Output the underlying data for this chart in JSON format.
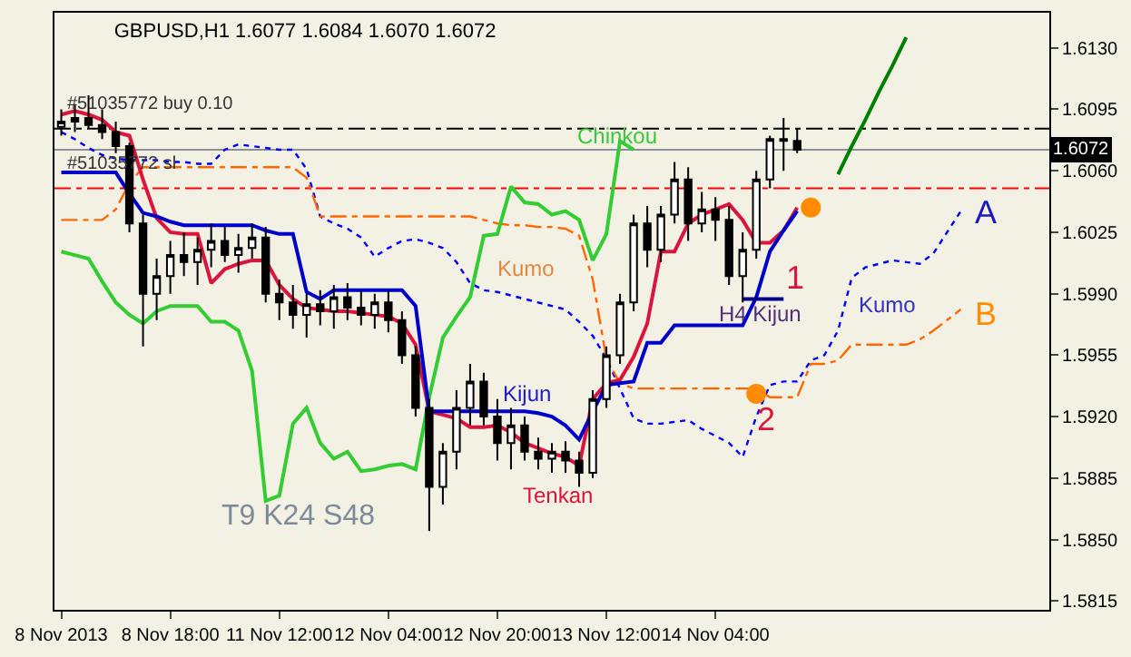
{
  "chart_data": {
    "type": "candlestick",
    "title": "GBPUSD,H1 1.6077 1.6084 1.6070 1.6072",
    "categories": [
      "8 Nov 2013",
      null,
      null,
      null,
      null,
      null,
      null,
      null,
      "8 Nov 18:00",
      null,
      null,
      null,
      null,
      null,
      null,
      null,
      "11 Nov 12:00",
      null,
      null,
      null,
      null,
      null,
      null,
      null,
      "12 Nov 04:00",
      null,
      null,
      null,
      null,
      null,
      null,
      null,
      "12 Nov 20:00",
      null,
      null,
      null,
      null,
      null,
      null,
      null,
      "13 Nov 12:00",
      null,
      null,
      null,
      null,
      null,
      null,
      null,
      "14 Nov 04:00",
      null,
      null,
      null,
      null,
      null,
      null,
      null,
      null,
      null,
      null,
      null,
      null,
      null,
      null,
      null,
      null,
      null,
      null,
      null,
      null,
      null,
      null,
      null,
      null
    ],
    "ohlc": [
      [
        1.6085,
        1.6095,
        1.608,
        1.6088
      ],
      [
        1.6088,
        1.6098,
        1.6082,
        1.609
      ],
      [
        1.609,
        1.6103,
        1.6084,
        1.6086
      ],
      [
        1.6086,
        1.6095,
        1.6078,
        1.6082
      ],
      [
        1.6082,
        1.6088,
        1.607,
        1.6074
      ],
      [
        1.6074,
        1.6076,
        1.6025,
        1.603
      ],
      [
        1.603,
        1.6035,
        1.596,
        1.599
      ],
      [
        1.599,
        1.601,
        1.5975,
        1.6
      ],
      [
        1.6,
        1.602,
        1.599,
        1.6012
      ],
      [
        1.6012,
        1.6025,
        1.6,
        1.6008
      ],
      [
        1.6008,
        1.6022,
        1.5995,
        1.6015
      ],
      [
        1.6015,
        1.603,
        1.6005,
        1.602
      ],
      [
        1.602,
        1.6028,
        1.6008,
        1.6012
      ],
      [
        1.6012,
        1.6024,
        1.6002,
        1.6016
      ],
      [
        1.6016,
        1.603,
        1.601,
        1.6022
      ],
      [
        1.6022,
        1.6028,
        1.5985,
        1.599
      ],
      [
        1.599,
        1.5998,
        1.5975,
        1.5985
      ],
      [
        1.5985,
        1.5995,
        1.597,
        1.5978
      ],
      [
        1.5978,
        1.599,
        1.5965,
        1.5984
      ],
      [
        1.5984,
        1.5992,
        1.5972,
        1.598
      ],
      [
        1.598,
        1.5995,
        1.597,
        1.5988
      ],
      [
        1.5988,
        1.5996,
        1.5975,
        1.5982
      ],
      [
        1.5982,
        1.5992,
        1.5972,
        1.5978
      ],
      [
        1.5978,
        1.599,
        1.597,
        1.5985
      ],
      [
        1.5985,
        1.5992,
        1.5968,
        1.5975
      ],
      [
        1.5975,
        1.598,
        1.595,
        1.5955
      ],
      [
        1.5955,
        1.596,
        1.592,
        1.5925
      ],
      [
        1.5925,
        1.593,
        1.5855,
        1.588
      ],
      [
        1.588,
        1.5905,
        1.587,
        1.59
      ],
      [
        1.59,
        1.5935,
        1.589,
        1.5925
      ],
      [
        1.5925,
        1.595,
        1.5915,
        1.594
      ],
      [
        1.594,
        1.5945,
        1.5915,
        1.592
      ],
      [
        1.592,
        1.593,
        1.5895,
        1.5905
      ],
      [
        1.5905,
        1.5925,
        1.589,
        1.5915
      ],
      [
        1.5915,
        1.592,
        1.5895,
        1.59
      ],
      [
        1.59,
        1.5908,
        1.589,
        1.5896
      ],
      [
        1.5896,
        1.5905,
        1.5888,
        1.59
      ],
      [
        1.59,
        1.5906,
        1.5888,
        1.5895
      ],
      [
        1.5895,
        1.59,
        1.588,
        1.5888
      ],
      [
        1.5888,
        1.5935,
        1.5885,
        1.593
      ],
      [
        1.593,
        1.596,
        1.5925,
        1.5955
      ],
      [
        1.5955,
        1.599,
        1.595,
        1.5985
      ],
      [
        1.5985,
        1.6035,
        1.598,
        1.603
      ],
      [
        1.603,
        1.604,
        1.6005,
        1.6015
      ],
      [
        1.6015,
        1.604,
        1.6008,
        1.6035
      ],
      [
        1.6035,
        1.6065,
        1.603,
        1.6055
      ],
      [
        1.6055,
        1.6062,
        1.602,
        1.603
      ],
      [
        1.603,
        1.6048,
        1.6025,
        1.6038
      ],
      [
        1.6038,
        1.6045,
        1.602,
        1.6032
      ],
      [
        1.6032,
        1.604,
        1.5995,
        1.6
      ],
      [
        1.6,
        1.6025,
        1.5985,
        1.6015
      ],
      [
        1.6015,
        1.606,
        1.601,
        1.6055
      ],
      [
        1.6055,
        1.608,
        1.605,
        1.6078
      ],
      [
        1.6078,
        1.609,
        1.606,
        1.6077
      ],
      [
        1.6077,
        1.6084,
        1.607,
        1.6072
      ],
      null,
      null,
      null,
      null,
      null,
      null,
      null,
      null,
      null,
      null,
      null,
      null,
      null,
      null,
      null,
      null,
      null,
      null
    ],
    "series": [
      {
        "type": "line",
        "color": "#0000ff",
        "line_style": "dotted",
        "values": [
          1.6082,
          1.6078,
          1.6073,
          1.6069,
          1.6067,
          1.6066,
          1.6066,
          1.6066,
          1.6065,
          1.6065,
          1.6064,
          1.6064,
          1.6072,
          1.6075,
          1.6074,
          1.6073,
          1.6072,
          1.6072,
          1.6061,
          1.6034,
          1.603,
          1.6027,
          1.6022,
          1.6011,
          1.6016,
          1.602,
          1.6021,
          1.6019,
          1.6016,
          1.6008,
          1.5996,
          1.5992,
          1.5991,
          1.5989,
          1.5987,
          1.5985,
          1.5983,
          1.5981,
          1.5974,
          1.5966,
          1.5953,
          1.5936,
          1.5919,
          1.5916,
          1.5916,
          1.5917,
          1.5918,
          1.5913,
          1.5909,
          1.5905,
          1.5897,
          1.592,
          1.5938,
          1.594,
          1.594,
          1.5952,
          1.5955,
          1.5969,
          1.5999,
          1.6005,
          1.6007,
          1.6009,
          1.6008,
          1.6007,
          1.6013,
          1.6025,
          1.6037,
          null,
          null,
          null,
          null,
          null,
          null
        ]
      },
      {
        "type": "line",
        "color": "#ff6600",
        "line_style": "dashed",
        "values": [
          1.6032,
          1.6032,
          1.6032,
          1.6032,
          1.6038,
          1.6053,
          1.6062,
          1.6062,
          1.6062,
          1.6062,
          1.6062,
          1.6062,
          1.6062,
          1.6062,
          1.6062,
          1.6062,
          1.6062,
          1.6062,
          1.6056,
          1.6034,
          1.6034,
          1.6034,
          1.6034,
          1.6034,
          1.6034,
          1.6034,
          1.6034,
          1.6034,
          1.6034,
          1.6034,
          1.6034,
          1.6032,
          1.603,
          1.6029,
          1.6029,
          1.6028,
          1.6028,
          1.6027,
          1.6023,
          1.5998,
          1.5953,
          1.5939,
          1.5936,
          1.5936,
          1.5936,
          1.5936,
          1.5936,
          1.5936,
          1.5936,
          1.5936,
          1.5936,
          1.5936,
          1.5931,
          1.5931,
          1.5931,
          1.595,
          1.595,
          1.5952,
          1.5961,
          1.5961,
          1.5961,
          1.5961,
          1.5961,
          1.5964,
          1.5969,
          1.5975,
          1.5981,
          null,
          null,
          null,
          null,
          null,
          null
        ]
      },
      {
        "type": "line",
        "color": "#32cd32",
        "values": [
          1.6014,
          1.6012,
          1.601,
          1.5997,
          1.5985,
          1.5978,
          1.5973,
          1.598,
          1.5983,
          1.5983,
          1.5983,
          1.5974,
          1.5974,
          1.5969,
          1.5946,
          1.5872,
          1.5875,
          1.5916,
          1.5925,
          1.5905,
          1.5896,
          1.59,
          1.5889,
          1.589,
          1.5892,
          1.5893,
          1.589,
          1.5931,
          1.5965,
          1.5977,
          1.5988,
          1.6023,
          1.6024,
          1.6051,
          1.6042,
          1.6041,
          1.6035,
          1.6037,
          1.6032,
          1.6009,
          1.6024,
          1.6077,
          1.6072,
          null,
          null,
          null,
          null,
          null,
          null,
          null,
          null,
          null,
          null,
          null,
          null,
          null,
          null,
          null,
          null,
          null,
          null,
          null,
          null,
          null,
          null,
          null,
          null,
          null,
          null,
          null,
          null,
          null,
          null
        ]
      },
      {
        "type": "line",
        "color": "#dc143c",
        "values": [
          1.6092,
          1.6094,
          1.6092,
          1.6089,
          1.6082,
          1.608,
          1.6055,
          1.6033,
          1.6025,
          1.6024,
          1.6024,
          1.5996,
          1.6004,
          1.6007,
          1.6009,
          1.6009,
          1.5995,
          1.5987,
          1.5982,
          1.5981,
          1.598,
          1.598,
          1.5979,
          1.5978,
          1.5977,
          1.5973,
          1.5961,
          1.5923,
          1.5921,
          1.5919,
          1.5914,
          1.5914,
          1.5915,
          1.5911,
          1.5905,
          1.5902,
          1.5899,
          1.5897,
          1.5892,
          1.593,
          1.5939,
          1.5941,
          1.5954,
          1.5973,
          1.6014,
          1.6014,
          1.603,
          1.6035,
          1.6038,
          1.6041,
          1.6032,
          1.6019,
          1.6019,
          1.6026,
          1.6039,
          null,
          null,
          null,
          null,
          null,
          null,
          null,
          null,
          null,
          null,
          null,
          null,
          null,
          null,
          null,
          null,
          null,
          null
        ]
      },
      {
        "type": "line",
        "color": "#0000cd",
        "values": [
          1.6059,
          1.6059,
          1.6059,
          1.6059,
          1.6059,
          1.6047,
          1.6036,
          1.6034,
          1.6031,
          1.6029,
          1.6029,
          1.6029,
          1.6029,
          1.6029,
          1.6029,
          1.6026,
          1.6024,
          1.6024,
          1.5991,
          1.5987,
          1.5992,
          1.5992,
          1.5992,
          1.5992,
          1.5992,
          1.5992,
          1.5983,
          1.5923,
          1.5923,
          1.5923,
          1.5923,
          1.5923,
          1.5923,
          1.5923,
          1.5923,
          1.5922,
          1.592,
          1.5915,
          1.5907,
          1.5923,
          1.5938,
          1.5939,
          1.594,
          1.5962,
          1.5962,
          1.5972,
          1.5972,
          1.5972,
          1.5972,
          1.5972,
          1.5972,
          1.5988,
          1.6014,
          1.6026,
          1.6037,
          null,
          null,
          null,
          null,
          null,
          null,
          null,
          null,
          null,
          null,
          null,
          null,
          null,
          null,
          null,
          null,
          null,
          null
        ]
      },
      {
        "type": "line",
        "color": "#00008b",
        "values": [
          null,
          null,
          null,
          null,
          null,
          null,
          null,
          null,
          null,
          null,
          null,
          null,
          null,
          null,
          null,
          null,
          null,
          null,
          null,
          null,
          null,
          null,
          null,
          null,
          null,
          null,
          null,
          null,
          null,
          null,
          null,
          null,
          null,
          null,
          null,
          null,
          null,
          null,
          null,
          null,
          null,
          null,
          null,
          null,
          null,
          null,
          null,
          null,
          null,
          null,
          1.5987,
          1.5987,
          1.5987,
          1.5987,
          null,
          null,
          null,
          null,
          null,
          null,
          null,
          null,
          null,
          null,
          null,
          null,
          null,
          null,
          null,
          null,
          null,
          null,
          null
        ]
      },
      {
        "type": "line",
        "color": "#008000",
        "values": [
          null,
          null,
          null,
          null,
          null,
          null,
          null,
          null,
          null,
          null,
          null,
          null,
          null,
          null,
          null,
          null,
          null,
          null,
          null,
          null,
          null,
          null,
          null,
          null,
          null,
          null,
          null,
          null,
          null,
          null,
          null,
          null,
          null,
          null,
          null,
          null,
          null,
          null,
          null,
          null,
          null,
          null,
          null,
          null,
          null,
          null,
          null,
          null,
          null,
          null,
          null,
          null,
          null,
          null,
          null,
          null,
          null,
          1.6058,
          1.6074,
          1.6089,
          1.6105,
          1.612,
          1.6136,
          null,
          null,
          null,
          null,
          null,
          null,
          null,
          null,
          null,
          null
        ]
      },
      {
        "type": "scatter",
        "color": "#ff8c00",
        "marker": "circle",
        "values": [
          null,
          null,
          null,
          null,
          null,
          null,
          null,
          null,
          null,
          null,
          null,
          null,
          null,
          null,
          null,
          null,
          null,
          null,
          null,
          null,
          null,
          null,
          null,
          null,
          null,
          null,
          null,
          null,
          null,
          null,
          null,
          null,
          null,
          null,
          null,
          null,
          null,
          null,
          null,
          null,
          null,
          null,
          null,
          null,
          null,
          null,
          null,
          null,
          null,
          null,
          null,
          1.5933,
          null,
          null,
          null,
          1.6039,
          null,
          null,
          null,
          null,
          null,
          null,
          null,
          null,
          null,
          null,
          null,
          null,
          null,
          null,
          null,
          null,
          null
        ]
      }
    ],
    "ref_lines": [
      {
        "axis": "y",
        "value": 1.6084,
        "label": "#51035772 buy 0.10",
        "color": "#000000",
        "line_style": "dashed"
      },
      {
        "axis": "y",
        "value": 1.6072,
        "label": "1.6072",
        "color": "#8a8f98",
        "line_style": "solid"
      },
      {
        "axis": "y",
        "value": 1.605,
        "label": "#51035772 sl",
        "color": "#ff0000",
        "line_style": "dashed"
      }
    ],
    "annotations": [
      "Chinkou",
      "Kumo",
      "Kumo",
      "Kijun",
      "Tenkan",
      "H4 Kijun",
      "1",
      "2",
      "A",
      "B",
      "T9 K24 S48"
    ],
    "ylim": [
      1.581,
      1.615
    ],
    "yticks": [
      1.5815,
      {
        "value": 1.585,
        "label": "1.5850"
      },
      1.5885,
      {
        "value": 1.592,
        "label": "1.5920"
      },
      1.5955,
      {
        "value": 1.599,
        "label": "1.5990"
      },
      1.6025,
      {
        "value": 1.606,
        "label": "1.6060"
      },
      1.6095,
      {
        "value": 1.613,
        "label": "1.6130"
      }
    ],
    "grid": false,
    "marker": "none"
  }
}
